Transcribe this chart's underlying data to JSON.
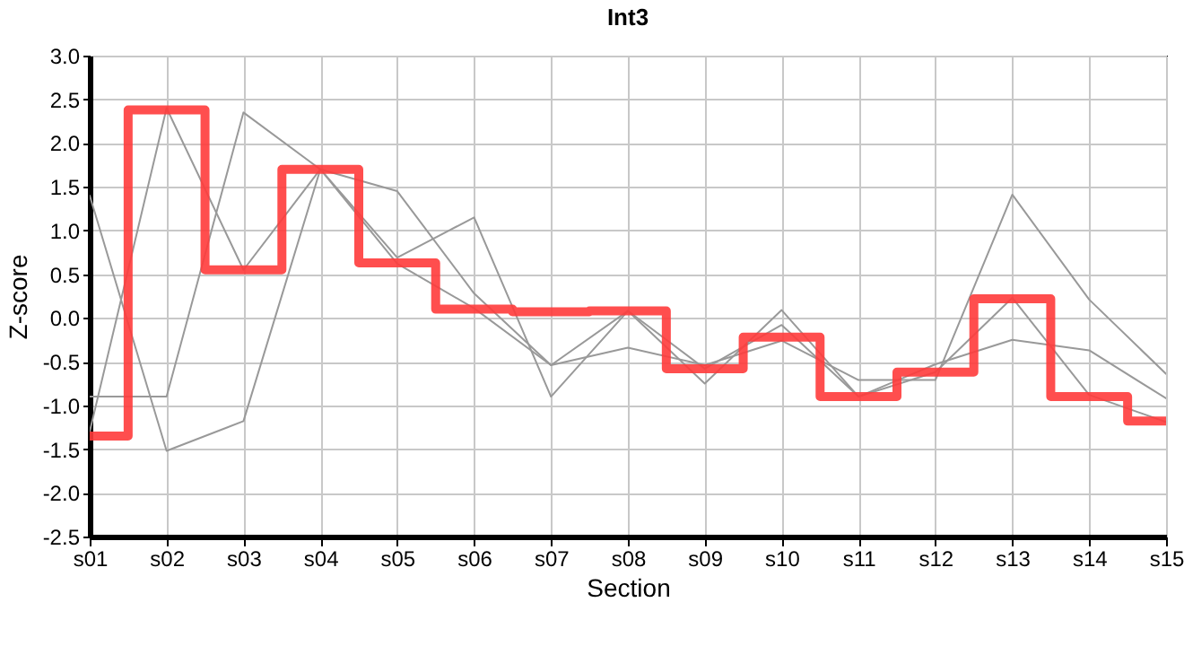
{
  "chart_data": {
    "type": "line",
    "title": "Int3",
    "xlabel": "Section",
    "ylabel": "Z-score",
    "categories": [
      "s01",
      "s02",
      "s03",
      "s04",
      "s05",
      "s06",
      "s07",
      "s08",
      "s09",
      "s10",
      "s11",
      "s12",
      "s13",
      "s14",
      "s15"
    ],
    "series": [
      {
        "color": "#999999",
        "values": [
          1.4,
          -1.52,
          -1.18,
          1.7,
          1.45,
          0.28,
          -0.54,
          -0.34,
          -0.54,
          -0.26,
          -0.71,
          -0.71,
          1.41,
          0.21,
          -0.64
        ]
      },
      {
        "color": "#999999",
        "values": [
          -0.9,
          -0.9,
          2.35,
          1.7,
          0.69,
          1.15,
          -0.9,
          0.08,
          -0.75,
          0.09,
          -0.9,
          -0.62,
          0.23,
          -0.88,
          -1.19
        ]
      },
      {
        "color": "#999999",
        "values": [
          -1.3,
          2.4,
          0.55,
          1.7,
          0.62,
          0.11,
          -0.54,
          0.08,
          -0.58,
          -0.08,
          -0.9,
          -0.53,
          -0.25,
          -0.37,
          -0.92
        ]
      },
      {
        "type": "step",
        "color": "#ff3b3b",
        "values": [
          -1.35,
          2.38,
          0.55,
          1.7,
          0.63,
          0.1,
          0.07,
          0.08,
          -0.58,
          -0.22,
          -0.9,
          -0.62,
          0.22,
          -0.9,
          -1.18
        ]
      }
    ],
    "ylim": [
      -2.5,
      3.0
    ],
    "yticks": [
      {
        "value": -2.5,
        "label": "-2.5"
      },
      {
        "value": -2,
        "label": "-2.0"
      },
      {
        "value": -1.5,
        "label": "-1.5"
      },
      {
        "value": -1,
        "label": "-1.0"
      },
      {
        "value": -0.5,
        "label": "-0.5"
      },
      {
        "value": 0,
        "label": "0.0"
      },
      {
        "value": 0.5,
        "label": "0.5"
      },
      {
        "value": 1,
        "label": "1.0"
      },
      {
        "value": 1.5,
        "label": "1.5"
      },
      {
        "value": 2,
        "label": "2.0"
      },
      {
        "value": 2.5,
        "label": "2.5"
      },
      {
        "value": 3,
        "label": "3.0"
      }
    ],
    "grid": true
  }
}
